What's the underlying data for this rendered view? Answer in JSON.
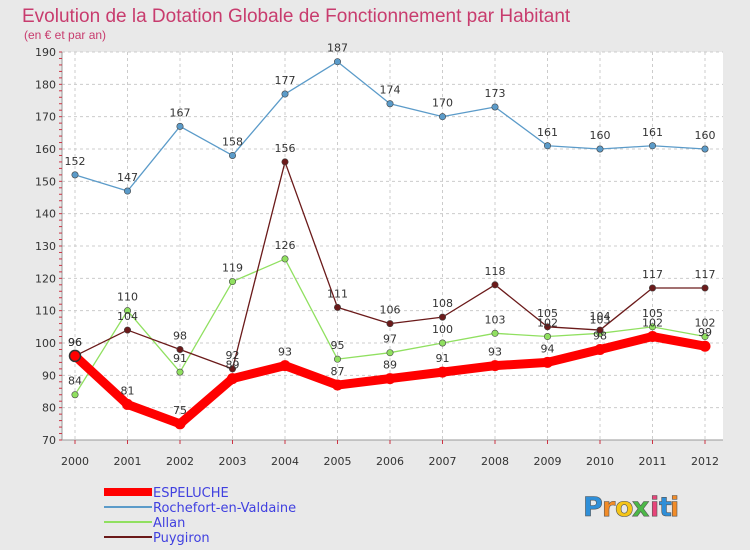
{
  "chart_data": {
    "type": "line",
    "title": "Evolution de la Dotation Globale de Fonctionnement par Habitant",
    "subtitle": "(en € et par an)",
    "xlabel": "",
    "ylabel": "",
    "x": [
      "2000",
      "2001",
      "2002",
      "2003",
      "2004",
      "2005",
      "2006",
      "2007",
      "2008",
      "2009",
      "2010",
      "2011",
      "2012"
    ],
    "ylim": [
      70,
      190
    ],
    "yticks": [
      70,
      80,
      90,
      100,
      110,
      120,
      130,
      140,
      150,
      160,
      170,
      180,
      190
    ],
    "grid": true,
    "legend_position": "bottom-left",
    "series": [
      {
        "name": "ESPELUCHE",
        "color": "#ff0000",
        "values": [
          96,
          81,
          75,
          89,
          93,
          87,
          89,
          91,
          93,
          94,
          98,
          102,
          99
        ],
        "labels": [
          "96",
          "81",
          "75",
          "89",
          "93",
          "87",
          "89",
          "91",
          "93",
          "94",
          "98",
          "102",
          "99"
        ]
      },
      {
        "name": "Rochefort-en-Valdaine",
        "color": "#5b9bc9",
        "values": [
          152,
          147,
          167,
          158,
          177,
          187,
          174,
          170,
          173,
          161,
          160,
          161,
          160
        ],
        "labels": [
          "152",
          "147",
          "167",
          "158",
          "177",
          "187",
          "174",
          "170",
          "173",
          "161",
          "160",
          "161",
          "160"
        ]
      },
      {
        "name": "Allan",
        "color": "#90e060",
        "values": [
          84,
          110,
          91,
          119,
          126,
          95,
          97,
          100,
          103,
          102,
          103,
          105,
          102
        ],
        "labels": [
          "84",
          "110",
          "91",
          "119",
          "126",
          "95",
          "97",
          "100",
          "103",
          "102",
          "103",
          "105",
          "102"
        ]
      },
      {
        "name": "Puygiron",
        "color": "#6b1a1a",
        "values": [
          96,
          104,
          98,
          92,
          156,
          111,
          106,
          108,
          118,
          105,
          104,
          117,
          117
        ],
        "labels": [
          "96",
          "104",
          "98",
          "92",
          "156",
          "111",
          "106",
          "108",
          "118",
          "105",
          "104",
          "117",
          "117"
        ]
      }
    ]
  },
  "brand": {
    "letters": [
      "P",
      "r",
      "o",
      "x",
      "i",
      "t",
      "i"
    ],
    "colors": [
      "#2f8fd8",
      "#f28c28",
      "#f5c518",
      "#4cb848",
      "#e8457a",
      "#2f8fd8",
      "#f28c28"
    ]
  }
}
